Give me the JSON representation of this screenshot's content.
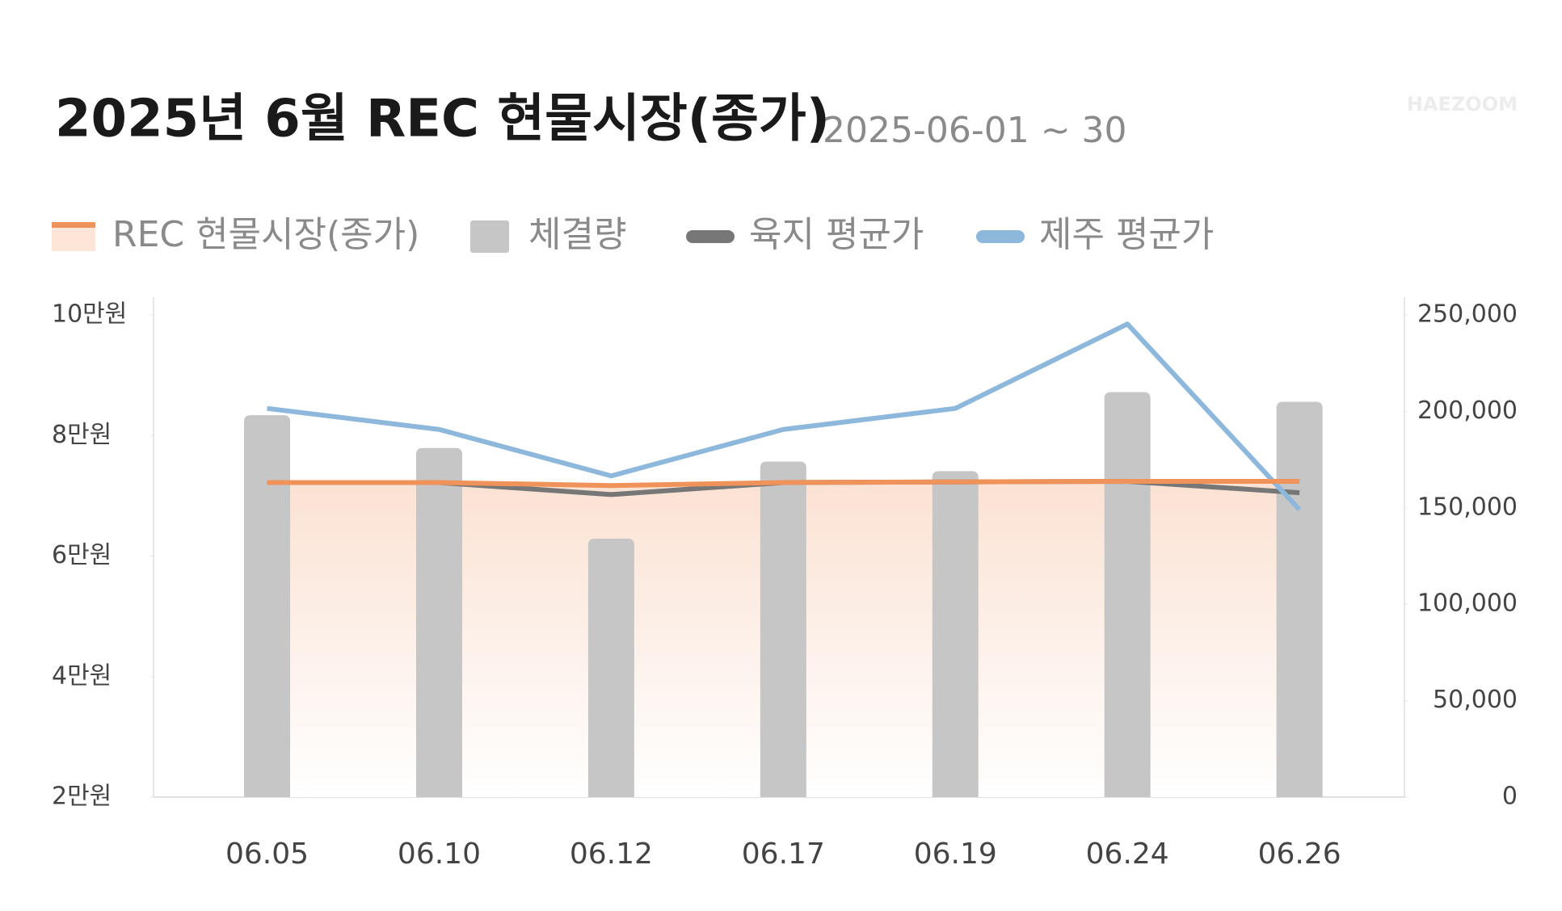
{
  "chart_data": {
    "type": "bar-line",
    "title": "2025년 6월 REC 현물시장(종가)",
    "subtitle": "2025-06-01 ~ 30",
    "watermark": "HAEZOOM",
    "categories": [
      "06.05",
      "06.10",
      "06.12",
      "06.17",
      "06.19",
      "06.24",
      "06.26"
    ],
    "series": [
      {
        "name": "REC 현물시장(종가)",
        "color": "#f0935a",
        "kind": "area-line",
        "axis": "y",
        "values": [
          72200,
          72200,
          71700,
          72200,
          72300,
          72400,
          72400
        ]
      },
      {
        "name": "체결량",
        "color": "#c6c6c6",
        "kind": "bar",
        "axis": "y2",
        "values": [
          198000,
          181000,
          134000,
          174000,
          169000,
          210000,
          205000
        ]
      },
      {
        "name": "육지 평균가",
        "color": "#777777",
        "kind": "line",
        "axis": "y",
        "values": [
          72200,
          72200,
          70200,
          72200,
          72300,
          72400,
          70500
        ]
      },
      {
        "name": "제주 평균가",
        "color": "#8db8dc",
        "kind": "line",
        "axis": "y",
        "values": [
          84500,
          81000,
          73300,
          81000,
          84500,
          98500,
          67700
        ]
      }
    ],
    "ylim": [
      20000,
      100000
    ],
    "yticks": [
      {
        "value": 20000,
        "label": "2만원"
      },
      {
        "value": 40000,
        "label": "4만원"
      },
      {
        "value": 60000,
        "label": "6만원"
      },
      {
        "value": 80000,
        "label": "8만원"
      },
      {
        "value": 100000,
        "label": "10만원"
      }
    ],
    "y2lim": [
      0,
      250000
    ],
    "y2ticks": [
      0,
      {
        "value": 50000,
        "label": "50,000"
      },
      {
        "value": 100000,
        "label": "100,000"
      },
      {
        "value": 150000,
        "label": "150,000"
      },
      {
        "value": 200000,
        "label": "200,000"
      },
      {
        "value": 250000,
        "label": "250,000"
      }
    ]
  }
}
